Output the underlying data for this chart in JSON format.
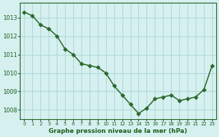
{
  "x": [
    0,
    1,
    2,
    3,
    4,
    5,
    6,
    7,
    8,
    9,
    10,
    11,
    12,
    13,
    14,
    15,
    16,
    17,
    18,
    19,
    20,
    21,
    22,
    23
  ],
  "y": [
    1013.3,
    1013.1,
    1012.6,
    1012.4,
    1012.0,
    1011.3,
    1011.0,
    1010.5,
    1010.4,
    1010.3,
    1010.0,
    1009.3,
    1008.8,
    1008.3,
    1007.8,
    1008.1,
    1008.6,
    1008.7,
    1008.8,
    1008.5,
    1008.6,
    1008.7,
    1009.1,
    1010.4
  ],
  "line_color": "#2d6a2d",
  "marker": "D",
  "marker_size": 3,
  "line_width": 1.2,
  "bg_color": "#d6f0f0",
  "grid_color": "#b0d8d8",
  "xlabel": "Graphe pression niveau de la mer (hPa)",
  "xlabel_color": "#1a5c1a",
  "tick_color": "#1a5c1a",
  "ylim": [
    1007.5,
    1013.8
  ],
  "yticks": [
    1008,
    1009,
    1010,
    1011,
    1012,
    1013
  ],
  "xticks": [
    0,
    1,
    2,
    3,
    4,
    5,
    6,
    7,
    8,
    9,
    10,
    11,
    12,
    13,
    14,
    15,
    16,
    17,
    18,
    19,
    20,
    21,
    22,
    23
  ],
  "xtick_labels": [
    "0",
    "1",
    "2",
    "3",
    "4",
    "5",
    "6",
    "7",
    "8",
    "9",
    "10",
    "11",
    "12",
    "13",
    "14",
    "15",
    "16",
    "17",
    "18",
    "19",
    "20",
    "21",
    "22",
    "23"
  ]
}
